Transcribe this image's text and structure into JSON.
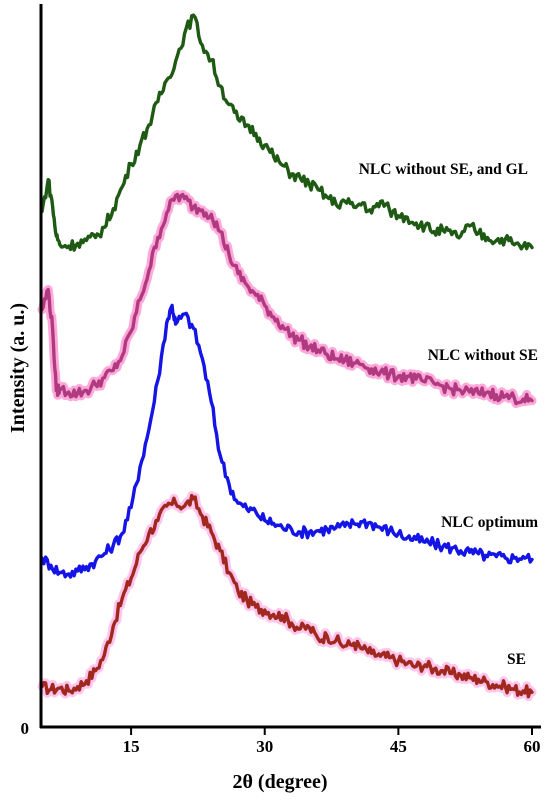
{
  "chart_data": {
    "type": "line",
    "xlabel": "2θ (degree)",
    "ylabel": "Intensity (a. u.)",
    "xlim": [
      5,
      60
    ],
    "xticks": [
      15,
      30,
      45,
      60
    ],
    "x_tick_labels": [
      "15",
      "30",
      "45",
      "60"
    ],
    "y_tick_labels": [
      "0"
    ],
    "grid": false,
    "legend": "none",
    "series": [
      {
        "name": "SE",
        "color": "#a0281e",
        "glow": "#ff7fd6",
        "points": [
          [
            5,
            5.6
          ],
          [
            6,
            5.2
          ],
          [
            7,
            5.4
          ],
          [
            8,
            5.0
          ],
          [
            9,
            5.6
          ],
          [
            10,
            6.4
          ],
          [
            11,
            7.8
          ],
          [
            12,
            10.0
          ],
          [
            13,
            14.0
          ],
          [
            14,
            17.8
          ],
          [
            15,
            20.6
          ],
          [
            16,
            24.2
          ],
          [
            17,
            26.8
          ],
          [
            18,
            28.6
          ],
          [
            19,
            30.6
          ],
          [
            20,
            31.0
          ],
          [
            21,
            30.6
          ],
          [
            22,
            31.6
          ],
          [
            23,
            29.2
          ],
          [
            24,
            27.0
          ],
          [
            25,
            24.4
          ],
          [
            26,
            21.4
          ],
          [
            27,
            18.8
          ],
          [
            28,
            17.6
          ],
          [
            29,
            16.6
          ],
          [
            30,
            16.2
          ],
          [
            31,
            15.6
          ],
          [
            32,
            15.4
          ],
          [
            33,
            14.4
          ],
          [
            34,
            13.6
          ],
          [
            35,
            13.8
          ],
          [
            36,
            12.2
          ],
          [
            37,
            12.6
          ],
          [
            38,
            12.0
          ],
          [
            39,
            11.2
          ],
          [
            40,
            11.6
          ],
          [
            41,
            10.8
          ],
          [
            42,
            10.2
          ],
          [
            43,
            9.8
          ],
          [
            44,
            9.6
          ],
          [
            45,
            9.2
          ],
          [
            46,
            8.8
          ],
          [
            47,
            8.4
          ],
          [
            48,
            8.6
          ],
          [
            49,
            8.0
          ],
          [
            50,
            7.8
          ],
          [
            51,
            7.4
          ],
          [
            52,
            7.2
          ],
          [
            53,
            6.8
          ],
          [
            54,
            6.6
          ],
          [
            55,
            6.2
          ],
          [
            56,
            5.8
          ],
          [
            57,
            5.6
          ],
          [
            58,
            5.2
          ],
          [
            59,
            5.0
          ],
          [
            60,
            4.8
          ]
        ]
      },
      {
        "name": "NLC optimum",
        "color": "#1414e6",
        "glow": null,
        "points": [
          [
            5,
            23.4
          ],
          [
            6,
            22.4
          ],
          [
            7,
            21.4
          ],
          [
            8,
            21.2
          ],
          [
            9,
            21.6
          ],
          [
            10,
            22.2
          ],
          [
            11,
            23.0
          ],
          [
            12,
            24.0
          ],
          [
            13,
            25.2
          ],
          [
            14,
            26.8
          ],
          [
            15,
            30.4
          ],
          [
            16,
            36.0
          ],
          [
            17,
            41.2
          ],
          [
            18,
            48.0
          ],
          [
            19,
            56.0
          ],
          [
            19.6,
            58.4
          ],
          [
            20,
            55.8
          ],
          [
            21,
            57.2
          ],
          [
            22,
            55.2
          ],
          [
            23,
            51.0
          ],
          [
            24,
            45.0
          ],
          [
            25,
            37.6
          ],
          [
            26,
            33.6
          ],
          [
            27,
            31.0
          ],
          [
            28,
            30.2
          ],
          [
            29,
            29.8
          ],
          [
            30,
            28.6
          ],
          [
            31,
            28.2
          ],
          [
            32,
            27.6
          ],
          [
            33,
            27.4
          ],
          [
            34,
            27.0
          ],
          [
            35,
            27.0
          ],
          [
            36,
            27.2
          ],
          [
            37,
            27.4
          ],
          [
            38,
            27.6
          ],
          [
            39,
            27.8
          ],
          [
            40,
            28.2
          ],
          [
            41,
            28.4
          ],
          [
            42,
            28.2
          ],
          [
            43,
            27.6
          ],
          [
            44,
            27.2
          ],
          [
            45,
            26.8
          ],
          [
            46,
            26.2
          ],
          [
            47,
            26.0
          ],
          [
            48,
            25.6
          ],
          [
            49,
            25.4
          ],
          [
            50,
            25.0
          ],
          [
            51,
            24.8
          ],
          [
            52,
            24.4
          ],
          [
            53,
            24.2
          ],
          [
            54,
            24.0
          ],
          [
            55,
            23.6
          ],
          [
            56,
            23.6
          ],
          [
            57,
            23.4
          ],
          [
            58,
            23.4
          ],
          [
            59,
            23.6
          ],
          [
            60,
            23.2
          ]
        ]
      },
      {
        "name": "NLC without SE",
        "color": "#b03a80",
        "glow": "#ff3fae",
        "points": [
          [
            5,
            57.8
          ],
          [
            5.7,
            60.6
          ],
          [
            6.2,
            55.0
          ],
          [
            6.6,
            46.6
          ],
          [
            7,
            46.8
          ],
          [
            8,
            46.4
          ],
          [
            9,
            46.2
          ],
          [
            10,
            46.6
          ],
          [
            11,
            47.4
          ],
          [
            12,
            48.4
          ],
          [
            13,
            49.4
          ],
          [
            14,
            51.4
          ],
          [
            15,
            54.8
          ],
          [
            16,
            59.2
          ],
          [
            17,
            63.2
          ],
          [
            18,
            67.8
          ],
          [
            19,
            71.2
          ],
          [
            20,
            73.6
          ],
          [
            21,
            73.2
          ],
          [
            22,
            72.0
          ],
          [
            23,
            71.6
          ],
          [
            24,
            71.0
          ],
          [
            25,
            68.6
          ],
          [
            26,
            65.4
          ],
          [
            27,
            62.8
          ],
          [
            28,
            61.2
          ],
          [
            29,
            59.8
          ],
          [
            30,
            58.4
          ],
          [
            31,
            56.8
          ],
          [
            32,
            55.6
          ],
          [
            33,
            54.2
          ],
          [
            34,
            53.6
          ],
          [
            35,
            52.6
          ],
          [
            36,
            52.2
          ],
          [
            37,
            51.6
          ],
          [
            38,
            51.0
          ],
          [
            39,
            50.8
          ],
          [
            40,
            50.4
          ],
          [
            41,
            50.2
          ],
          [
            42,
            49.6
          ],
          [
            43,
            49.2
          ],
          [
            44,
            48.8
          ],
          [
            45,
            48.6
          ],
          [
            46,
            48.6
          ],
          [
            47,
            48.2
          ],
          [
            48,
            47.8
          ],
          [
            49,
            47.6
          ],
          [
            50,
            47.2
          ],
          [
            51,
            46.8
          ],
          [
            52,
            46.6
          ],
          [
            53,
            46.4
          ],
          [
            54,
            46.2
          ],
          [
            55,
            46.4
          ],
          [
            56,
            46.0
          ],
          [
            57,
            45.8
          ],
          [
            58,
            45.6
          ],
          [
            59,
            45.4
          ],
          [
            60,
            45.2
          ]
        ]
      },
      {
        "name": "NLC without SE, and GL",
        "color": "#1f5a14",
        "glow": null,
        "points": [
          [
            5,
            71.4
          ],
          [
            5.7,
            75.8
          ],
          [
            6.2,
            72.0
          ],
          [
            6.6,
            68.0
          ],
          [
            7,
            66.8
          ],
          [
            8,
            66.6
          ],
          [
            9,
            67.0
          ],
          [
            10,
            67.4
          ],
          [
            11,
            67.8
          ],
          [
            12,
            69.2
          ],
          [
            13,
            71.8
          ],
          [
            14,
            74.8
          ],
          [
            15,
            78.0
          ],
          [
            16,
            80.6
          ],
          [
            17,
            83.4
          ],
          [
            18,
            86.6
          ],
          [
            19,
            89.6
          ],
          [
            20,
            92.2
          ],
          [
            21,
            96.0
          ],
          [
            22,
            98.6
          ],
          [
            23,
            94.4
          ],
          [
            24,
            92.4
          ],
          [
            25,
            88.8
          ],
          [
            26,
            86.2
          ],
          [
            27,
            84.2
          ],
          [
            28,
            83.4
          ],
          [
            29,
            82.2
          ],
          [
            30,
            80.6
          ],
          [
            31,
            79.0
          ],
          [
            32,
            77.8
          ],
          [
            33,
            76.6
          ],
          [
            34,
            76.0
          ],
          [
            35,
            75.2
          ],
          [
            36,
            74.4
          ],
          [
            37,
            73.4
          ],
          [
            38,
            72.4
          ],
          [
            39,
            72.8
          ],
          [
            40,
            72.0
          ],
          [
            41,
            72.6
          ],
          [
            42,
            71.2
          ],
          [
            43,
            72.8
          ],
          [
            44,
            71.6
          ],
          [
            45,
            70.8
          ],
          [
            46,
            70.6
          ],
          [
            47,
            69.8
          ],
          [
            48,
            69.4
          ],
          [
            49,
            68.6
          ],
          [
            50,
            68.8
          ],
          [
            51,
            68.2
          ],
          [
            52,
            68.0
          ],
          [
            53,
            69.4
          ],
          [
            54,
            68.4
          ],
          [
            55,
            67.8
          ],
          [
            56,
            67.4
          ],
          [
            57,
            67.6
          ],
          [
            58,
            66.8
          ],
          [
            59,
            66.6
          ],
          [
            60,
            66.4
          ]
        ]
      }
    ]
  }
}
